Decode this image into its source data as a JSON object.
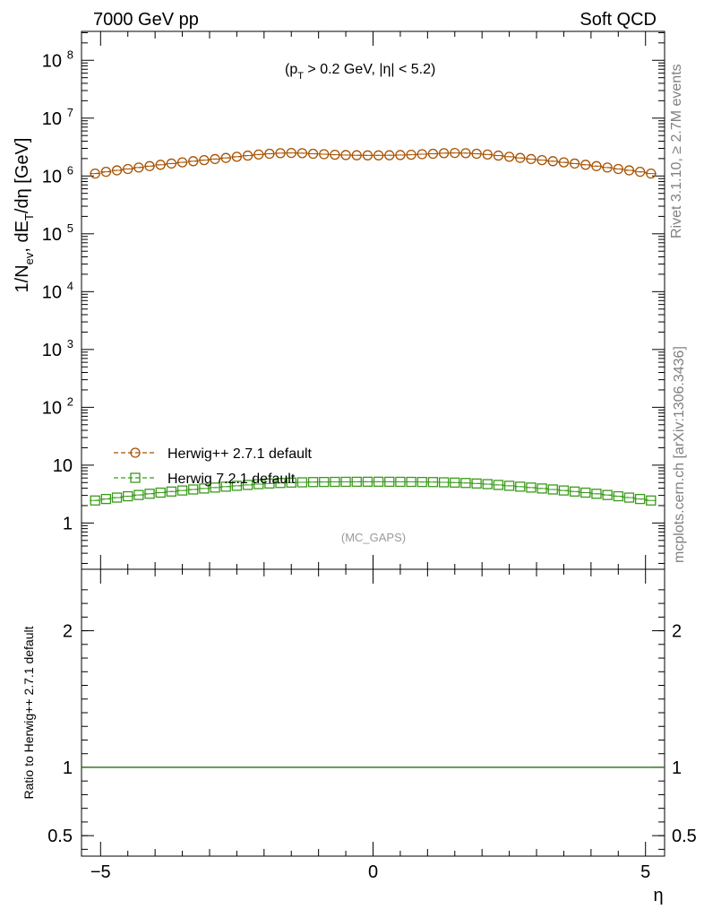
{
  "header": {
    "left": "7000 GeV pp",
    "right": "Soft QCD"
  },
  "side_text": {
    "rivet": "Rivet 3.1.10, ≥ 2.7M events",
    "mcplots": "mcplots.cern.ch [arXiv:1306.3436]"
  },
  "chart_data": [
    {
      "type": "scatter",
      "panel": "main",
      "title": "",
      "cut_label": "(p_T > 0.2 GeV, |η| < 5.2)",
      "watermark": "(MC_GAPS)",
      "ylabel": "1/N_ev, dE_T/dη [GeV]",
      "xlabel": "η",
      "xlim": [
        -5.35,
        5.35
      ],
      "ylim_log10": [
        -0.8,
        8.5
      ],
      "yscale": "log",
      "x_ticks": [
        "−5",
        "0",
        "5"
      ],
      "y_ticks": [
        {
          "text": "1",
          "sup": "",
          "log": 0
        },
        {
          "text": "10",
          "sup": "",
          "log": 1
        },
        {
          "text": "10",
          "sup": "2",
          "log": 2
        },
        {
          "text": "10",
          "sup": "3",
          "log": 3
        },
        {
          "text": "10",
          "sup": "4",
          "log": 4
        },
        {
          "text": "10",
          "sup": "5",
          "log": 5
        },
        {
          "text": "10",
          "sup": "6",
          "log": 6
        },
        {
          "text": "10",
          "sup": "7",
          "log": 7
        },
        {
          "text": "10",
          "sup": "8",
          "log": 8
        }
      ],
      "x": [
        -5.1,
        -4.9,
        -4.7,
        -4.5,
        -4.3,
        -4.1,
        -3.9,
        -3.7,
        -3.5,
        -3.3,
        -3.1,
        -2.9,
        -2.7,
        -2.5,
        -2.3,
        -2.1,
        -1.9,
        -1.7,
        -1.5,
        -1.3,
        -1.1,
        -0.9,
        -0.7,
        -0.5,
        -0.3,
        -0.1,
        0.1,
        0.3,
        0.5,
        0.7,
        0.9,
        1.1,
        1.3,
        1.5,
        1.7,
        1.9,
        2.1,
        2.3,
        2.5,
        2.7,
        2.9,
        3.1,
        3.3,
        3.5,
        3.7,
        3.9,
        4.1,
        4.3,
        4.5,
        4.7,
        4.9,
        5.1
      ],
      "legend_position": "lower-left",
      "series": [
        {
          "name": "Herwig++ 2.7.1 default",
          "marker": "open-circle",
          "color": "#a65200",
          "values": [
            1100000.0,
            1180000.0,
            1250000.0,
            1320000.0,
            1400000.0,
            1480000.0,
            1560000.0,
            1640000.0,
            1720000.0,
            1800000.0,
            1880000.0,
            1960000.0,
            2050000.0,
            2150000.0,
            2250000.0,
            2350000.0,
            2420000.0,
            2480000.0,
            2500000.0,
            2480000.0,
            2420000.0,
            2380000.0,
            2330000.0,
            2300000.0,
            2280000.0,
            2270000.0,
            2270000.0,
            2280000.0,
            2300000.0,
            2330000.0,
            2380000.0,
            2420000.0,
            2480000.0,
            2500000.0,
            2480000.0,
            2420000.0,
            2350000.0,
            2250000.0,
            2150000.0,
            2050000.0,
            1960000.0,
            1880000.0,
            1800000.0,
            1720000.0,
            1640000.0,
            1560000.0,
            1480000.0,
            1400000.0,
            1320000.0,
            1250000.0,
            1180000.0,
            1100000.0
          ]
        },
        {
          "name": "Herwig 7.2.1 default",
          "marker": "open-square",
          "color": "#3a9a1a",
          "values": [
            2.45,
            2.6,
            2.75,
            2.9,
            3.05,
            3.2,
            3.35,
            3.5,
            3.65,
            3.8,
            3.95,
            4.1,
            4.25,
            4.4,
            4.55,
            4.7,
            4.82,
            4.92,
            5.0,
            5.05,
            5.1,
            5.12,
            5.14,
            5.15,
            5.16,
            5.17,
            5.17,
            5.16,
            5.15,
            5.14,
            5.12,
            5.1,
            5.05,
            5.0,
            4.92,
            4.82,
            4.7,
            4.55,
            4.4,
            4.25,
            4.1,
            3.95,
            3.8,
            3.65,
            3.5,
            3.35,
            3.2,
            3.05,
            2.9,
            2.75,
            2.6,
            2.45
          ]
        }
      ]
    },
    {
      "type": "line",
      "panel": "ratio",
      "ylabel": "Ratio to Herwig++ 2.7.1 default",
      "xlabel": "η",
      "xlim": [
        -5.35,
        5.35
      ],
      "ylim": [
        0.35,
        2.45
      ],
      "y_ticks": [
        "0.5",
        "1",
        "2"
      ],
      "reference": 1.0,
      "series": [
        {
          "name": "Herwig++ 2.7.1 default",
          "color": "#a65200",
          "values": [
            1.0,
            1.0
          ]
        },
        {
          "name": "Herwig 7.2.1 default",
          "color": "#3a9a1a",
          "values": [
            1.0,
            1.0
          ]
        }
      ]
    }
  ]
}
